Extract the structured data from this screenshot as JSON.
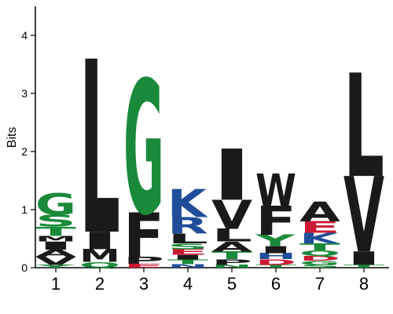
{
  "chart_data": {
    "type": "sequence-logo",
    "title": "",
    "xlabel": "",
    "ylabel": "Bits",
    "ylim": [
      0,
      4.5
    ],
    "y_ticks": [
      "0",
      "1",
      "2",
      "3",
      "4"
    ],
    "x_ticks": [
      "1",
      "2",
      "3",
      "4",
      "5",
      "6",
      "7",
      "8"
    ],
    "colors": {
      "hydrophobic": "#1a1a1a",
      "polar": "#1a8a3a",
      "basic": "#1f4e99",
      "acidic": "#cc1a33",
      "amide": "#b03080"
    },
    "positions": [
      {
        "position": "1",
        "stack": [
          {
            "letter": "Y",
            "bits": 0.05,
            "color": "#1a8a3a"
          },
          {
            "letter": "V",
            "bits": 0.14,
            "color": "#1a1a1a"
          },
          {
            "letter": "A",
            "bits": 0.12,
            "color": "#1a1a1a"
          },
          {
            "letter": "I",
            "bits": 0.14,
            "color": "#1a1a1a"
          },
          {
            "letter": "M",
            "bits": 0.1,
            "color": "#1a1a1a"
          },
          {
            "letter": "T",
            "bits": 0.16,
            "color": "#1a8a3a"
          },
          {
            "letter": "S",
            "bits": 0.2,
            "color": "#1a8a3a"
          },
          {
            "letter": "G",
            "bits": 0.37,
            "color": "#1a8a3a"
          }
        ]
      },
      {
        "position": "2",
        "stack": [
          {
            "letter": "Q",
            "bits": 0.1,
            "color": "#1a8a3a"
          },
          {
            "letter": "M",
            "bits": 0.22,
            "color": "#1a1a1a"
          },
          {
            "letter": "I",
            "bits": 0.3,
            "color": "#1a1a1a"
          },
          {
            "letter": "L",
            "bits": 2.98,
            "color": "#1a1a1a"
          }
        ]
      },
      {
        "position": "3",
        "stack": [
          {
            "letter": "E",
            "bits": 0.07,
            "color": "#cc1a33"
          },
          {
            "letter": "P",
            "bits": 0.12,
            "color": "#1a1a1a"
          },
          {
            "letter": "F",
            "bits": 0.76,
            "color": "#1a1a1a"
          },
          {
            "letter": "G",
            "bits": 2.3,
            "color": "#1a8a3a"
          }
        ]
      },
      {
        "position": "4",
        "stack": [
          {
            "letter": "N",
            "bits": 0.06,
            "color": "#1f4e99"
          },
          {
            "letter": "T",
            "bits": 0.08,
            "color": "#1a8a3a"
          },
          {
            "letter": "I",
            "bits": 0.08,
            "color": "#1a1a1a"
          },
          {
            "letter": "E",
            "bits": 0.1,
            "color": "#cc1a33"
          },
          {
            "letter": "S",
            "bits": 0.1,
            "color": "#1a8a3a"
          },
          {
            "letter": "L",
            "bits": 0.17,
            "color": "#1a1a1a"
          },
          {
            "letter": "R",
            "bits": 0.28,
            "color": "#1f4e99"
          },
          {
            "letter": "K",
            "bits": 0.48,
            "color": "#1f4e99"
          }
        ]
      },
      {
        "position": "5",
        "stack": [
          {
            "letter": "N",
            "bits": 0.05,
            "color": "#1a8a3a"
          },
          {
            "letter": "P",
            "bits": 0.1,
            "color": "#1a1a1a"
          },
          {
            "letter": "T",
            "bits": 0.13,
            "color": "#1a8a3a"
          },
          {
            "letter": "A",
            "bits": 0.17,
            "color": "#1a1a1a"
          },
          {
            "letter": "L",
            "bits": 0.22,
            "color": "#1a1a1a"
          },
          {
            "letter": "V",
            "bits": 0.5,
            "color": "#1a1a1a"
          },
          {
            "letter": "I",
            "bits": 0.88,
            "color": "#1a1a1a"
          }
        ]
      },
      {
        "position": "6",
        "stack": [
          {
            "letter": "T",
            "bits": 0.05,
            "color": "#1a8a3a"
          },
          {
            "letter": "D",
            "bits": 0.1,
            "color": "#cc1a33"
          },
          {
            "letter": "H",
            "bits": 0.1,
            "color": "#1f4e99"
          },
          {
            "letter": "I",
            "bits": 0.12,
            "color": "#1a1a1a"
          },
          {
            "letter": "Y",
            "bits": 0.2,
            "color": "#1a8a3a"
          },
          {
            "letter": "F",
            "bits": 0.5,
            "color": "#1a1a1a"
          },
          {
            "letter": "W",
            "bits": 0.55,
            "color": "#1a1a1a"
          }
        ]
      },
      {
        "position": "7",
        "stack": [
          {
            "letter": "S",
            "bits": 0.05,
            "color": "#1a8a3a"
          },
          {
            "letter": "G",
            "bits": 0.07,
            "color": "#1a8a3a"
          },
          {
            "letter": "D",
            "bits": 0.08,
            "color": "#cc1a33"
          },
          {
            "letter": "Q",
            "bits": 0.1,
            "color": "#1a8a3a"
          },
          {
            "letter": "T",
            "bits": 0.12,
            "color": "#1a8a3a"
          },
          {
            "letter": "K",
            "bits": 0.18,
            "color": "#1f4e99"
          },
          {
            "letter": "E",
            "bits": 0.2,
            "color": "#cc1a33"
          },
          {
            "letter": "A",
            "bits": 0.34,
            "color": "#1a1a1a"
          }
        ]
      },
      {
        "position": "8",
        "stack": [
          {
            "letter": "T",
            "bits": 0.05,
            "color": "#1a8a3a"
          },
          {
            "letter": "I",
            "bits": 0.23,
            "color": "#1a1a1a"
          },
          {
            "letter": "V",
            "bits": 1.3,
            "color": "#1a1a1a"
          },
          {
            "letter": "L",
            "bits": 1.78,
            "color": "#1a1a1a"
          }
        ]
      }
    ]
  }
}
